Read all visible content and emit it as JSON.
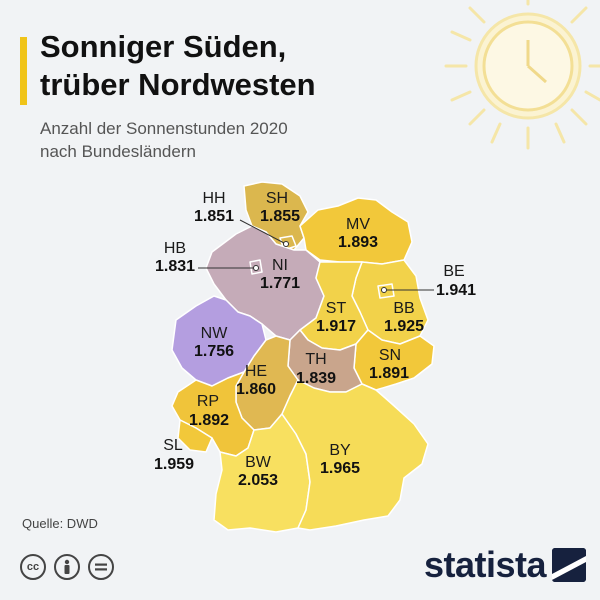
{
  "header": {
    "title_line1": "Sonniger Süden,",
    "title_line2": "trüber Nordwesten",
    "subtitle_line1": "Anzahl der Sonnenstunden 2020",
    "subtitle_line2": "nach Bundesländern"
  },
  "regions": [
    {
      "code": "SH",
      "value": "1.855",
      "color": "#dbb74e"
    },
    {
      "code": "HH",
      "value": "1.851",
      "color": "#dbb74e"
    },
    {
      "code": "MV",
      "value": "1.893",
      "color": "#f2c83a"
    },
    {
      "code": "HB",
      "value": "1.831",
      "color": "#c5abb8"
    },
    {
      "code": "NI",
      "value": "1.771",
      "color": "#c5abb8"
    },
    {
      "code": "BE",
      "value": "1.941",
      "color": "#f2d24a"
    },
    {
      "code": "BB",
      "value": "1.925",
      "color": "#f2d24a"
    },
    {
      "code": "ST",
      "value": "1.917",
      "color": "#f2d24a"
    },
    {
      "code": "NW",
      "value": "1.756",
      "color": "#b49ee0"
    },
    {
      "code": "SN",
      "value": "1.891",
      "color": "#f2c83a"
    },
    {
      "code": "TH",
      "value": "1.839",
      "color": "#c9a58c"
    },
    {
      "code": "HE",
      "value": "1.860",
      "color": "#e0b852"
    },
    {
      "code": "RP",
      "value": "1.892",
      "color": "#f0c43a"
    },
    {
      "code": "SL",
      "value": "1.959",
      "color": "#f2c83a"
    },
    {
      "code": "BW",
      "value": "2.053",
      "color": "#f8e060"
    },
    {
      "code": "BY",
      "value": "1.965",
      "color": "#f6dc58"
    }
  ],
  "footer": {
    "source": "Quelle: DWD",
    "license_icons": [
      "cc-icon",
      "by-icon",
      "nd-icon"
    ],
    "brand": "statista"
  },
  "colors": {
    "accent": "#f0c419",
    "sun": "#f7e7a6",
    "brand": "#16213e"
  }
}
